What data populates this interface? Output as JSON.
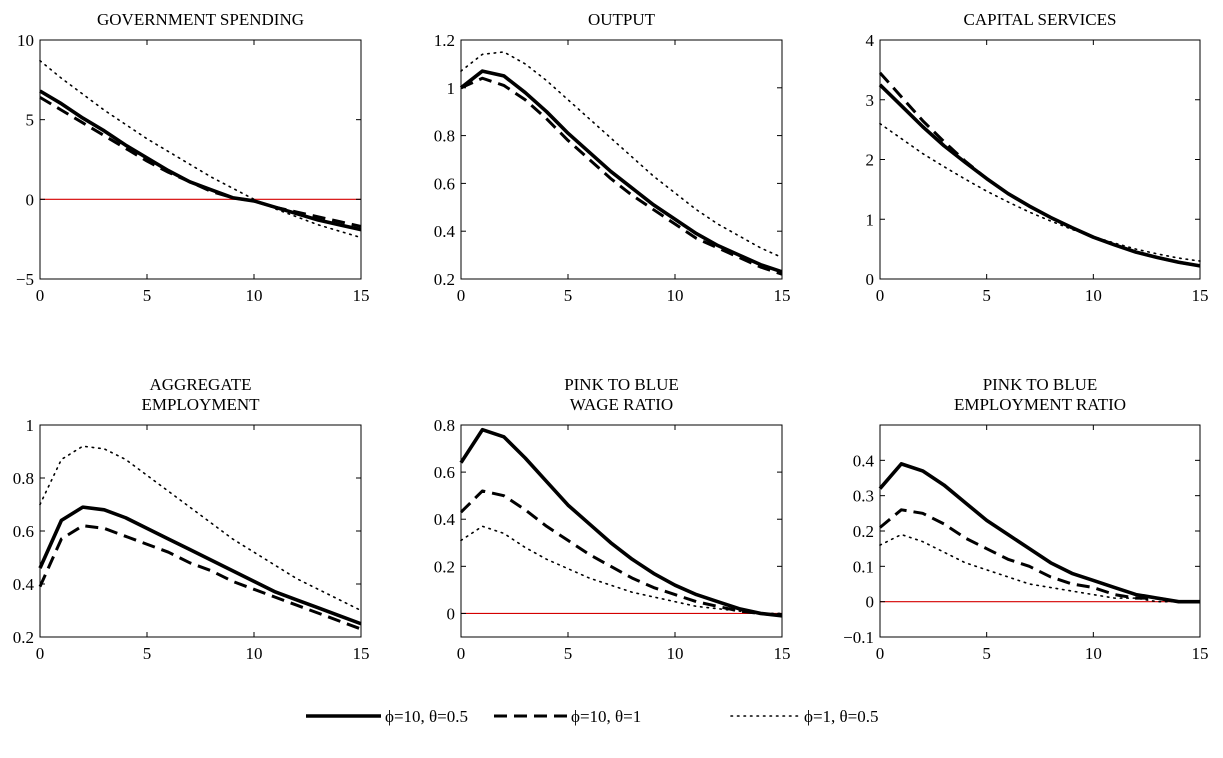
{
  "chart_data": [
    {
      "type": "line",
      "title": [
        "GOVERNMENT SPENDING"
      ],
      "xlim": [
        0,
        15
      ],
      "ylim": [
        -5,
        10
      ],
      "xticks": [
        0,
        5,
        10,
        15
      ],
      "yticks": [
        -5,
        0,
        5,
        10
      ],
      "zero_line": true,
      "grid": false,
      "x": [
        0,
        1,
        2,
        3,
        4,
        5,
        6,
        7,
        8,
        9,
        10,
        11,
        12,
        13,
        14,
        15
      ],
      "series": [
        {
          "style": "solid",
          "values": [
            6.8,
            6.0,
            5.1,
            4.3,
            3.4,
            2.6,
            1.8,
            1.1,
            0.6,
            0.1,
            -0.1,
            -0.5,
            -0.9,
            -1.3,
            -1.6,
            -1.9
          ]
        },
        {
          "style": "dashed",
          "values": [
            6.4,
            5.6,
            4.8,
            4.0,
            3.2,
            2.4,
            1.7,
            1.1,
            0.5,
            0.1,
            -0.1,
            -0.5,
            -0.8,
            -1.1,
            -1.4,
            -1.7
          ]
        },
        {
          "style": "dotted",
          "values": [
            8.7,
            7.6,
            6.6,
            5.6,
            4.7,
            3.8,
            3.0,
            2.2,
            1.4,
            0.7,
            0.0,
            -0.6,
            -1.1,
            -1.6,
            -2.0,
            -2.4
          ]
        }
      ]
    },
    {
      "type": "line",
      "title": [
        "OUTPUT"
      ],
      "xlim": [
        0,
        15
      ],
      "ylim": [
        0.2,
        1.2
      ],
      "xticks": [
        0,
        5,
        10,
        15
      ],
      "yticks": [
        0.2,
        0.4,
        0.6,
        0.8,
        1.0,
        1.2
      ],
      "zero_line": false,
      "grid": false,
      "x": [
        0,
        1,
        2,
        3,
        4,
        5,
        6,
        7,
        8,
        9,
        10,
        11,
        12,
        13,
        14,
        15
      ],
      "series": [
        {
          "style": "solid",
          "values": [
            1.0,
            1.07,
            1.05,
            0.98,
            0.9,
            0.81,
            0.73,
            0.65,
            0.58,
            0.51,
            0.45,
            0.39,
            0.34,
            0.3,
            0.26,
            0.23
          ]
        },
        {
          "style": "dashed",
          "values": [
            1.0,
            1.04,
            1.01,
            0.95,
            0.87,
            0.78,
            0.7,
            0.62,
            0.55,
            0.49,
            0.43,
            0.37,
            0.33,
            0.29,
            0.25,
            0.22
          ]
        },
        {
          "style": "dotted",
          "values": [
            1.07,
            1.14,
            1.15,
            1.1,
            1.03,
            0.95,
            0.87,
            0.79,
            0.71,
            0.63,
            0.56,
            0.49,
            0.43,
            0.38,
            0.33,
            0.29
          ]
        }
      ]
    },
    {
      "type": "line",
      "title": [
        "CAPITAL SERVICES"
      ],
      "xlim": [
        0,
        15
      ],
      "ylim": [
        0,
        4
      ],
      "xticks": [
        0,
        5,
        10,
        15
      ],
      "yticks": [
        0,
        1,
        2,
        3,
        4
      ],
      "zero_line": false,
      "grid": false,
      "x": [
        0,
        1,
        2,
        3,
        4,
        5,
        6,
        7,
        8,
        9,
        10,
        11,
        12,
        13,
        14,
        15
      ],
      "series": [
        {
          "style": "solid",
          "values": [
            3.25,
            2.9,
            2.55,
            2.23,
            1.95,
            1.68,
            1.43,
            1.22,
            1.03,
            0.86,
            0.7,
            0.57,
            0.45,
            0.36,
            0.28,
            0.22
          ]
        },
        {
          "style": "dashed",
          "values": [
            3.45,
            3.05,
            2.65,
            2.3,
            1.97,
            1.68,
            1.43,
            1.22,
            1.03,
            0.86,
            0.7,
            0.57,
            0.45,
            0.36,
            0.28,
            0.22
          ]
        },
        {
          "style": "dotted",
          "values": [
            2.6,
            2.35,
            2.1,
            1.88,
            1.67,
            1.47,
            1.29,
            1.12,
            0.97,
            0.83,
            0.71,
            0.6,
            0.5,
            0.42,
            0.35,
            0.3
          ]
        }
      ]
    },
    {
      "type": "line",
      "title": [
        "AGGREGATE",
        "EMPLOYMENT"
      ],
      "xlim": [
        0,
        15
      ],
      "ylim": [
        0.2,
        1.0
      ],
      "xticks": [
        0,
        5,
        10,
        15
      ],
      "yticks": [
        0.2,
        0.4,
        0.6,
        0.8,
        1.0
      ],
      "zero_line": false,
      "grid": false,
      "x": [
        0,
        1,
        2,
        3,
        4,
        5,
        6,
        7,
        8,
        9,
        10,
        11,
        12,
        13,
        14,
        15
      ],
      "series": [
        {
          "style": "solid",
          "values": [
            0.46,
            0.64,
            0.69,
            0.68,
            0.65,
            0.61,
            0.57,
            0.53,
            0.49,
            0.45,
            0.41,
            0.37,
            0.34,
            0.31,
            0.28,
            0.25
          ]
        },
        {
          "style": "dashed",
          "values": [
            0.39,
            0.57,
            0.62,
            0.61,
            0.58,
            0.55,
            0.52,
            0.48,
            0.45,
            0.41,
            0.38,
            0.35,
            0.32,
            0.29,
            0.26,
            0.23
          ]
        },
        {
          "style": "dotted",
          "values": [
            0.7,
            0.87,
            0.92,
            0.91,
            0.87,
            0.81,
            0.75,
            0.69,
            0.63,
            0.57,
            0.52,
            0.47,
            0.42,
            0.38,
            0.34,
            0.3
          ]
        }
      ]
    },
    {
      "type": "line",
      "title": [
        "PINK TO BLUE",
        "WAGE RATIO"
      ],
      "xlim": [
        0,
        15
      ],
      "ylim": [
        -0.1,
        0.8
      ],
      "xticks": [
        0,
        5,
        10,
        15
      ],
      "yticks": [
        0,
        0.2,
        0.4,
        0.6,
        0.8
      ],
      "zero_line": true,
      "grid": false,
      "x": [
        0,
        1,
        2,
        3,
        4,
        5,
        6,
        7,
        8,
        9,
        10,
        11,
        12,
        13,
        14,
        15
      ],
      "series": [
        {
          "style": "solid",
          "values": [
            0.64,
            0.78,
            0.75,
            0.66,
            0.56,
            0.46,
            0.38,
            0.3,
            0.23,
            0.17,
            0.12,
            0.08,
            0.05,
            0.02,
            0.0,
            -0.01
          ]
        },
        {
          "style": "dashed",
          "values": [
            0.43,
            0.52,
            0.5,
            0.44,
            0.37,
            0.31,
            0.25,
            0.2,
            0.15,
            0.11,
            0.08,
            0.05,
            0.03,
            0.01,
            0.0,
            -0.01
          ]
        },
        {
          "style": "dotted",
          "values": [
            0.31,
            0.37,
            0.34,
            0.28,
            0.23,
            0.19,
            0.15,
            0.12,
            0.09,
            0.07,
            0.05,
            0.03,
            0.02,
            0.01,
            0.0,
            0.0
          ]
        }
      ]
    },
    {
      "type": "line",
      "title": [
        "PINK TO BLUE",
        "EMPLOYMENT RATIO"
      ],
      "xlim": [
        0,
        15
      ],
      "ylim": [
        -0.1,
        0.5
      ],
      "xticks": [
        0,
        5,
        10,
        15
      ],
      "yticks": [
        -0.1,
        0,
        0.1,
        0.2,
        0.3,
        0.4
      ],
      "zero_line": true,
      "grid": false,
      "x": [
        0,
        1,
        2,
        3,
        4,
        5,
        6,
        7,
        8,
        9,
        10,
        11,
        12,
        13,
        14,
        15
      ],
      "series": [
        {
          "style": "solid",
          "values": [
            0.32,
            0.39,
            0.37,
            0.33,
            0.28,
            0.23,
            0.19,
            0.15,
            0.11,
            0.08,
            0.06,
            0.04,
            0.02,
            0.01,
            0.0,
            0.0
          ]
        },
        {
          "style": "dashed",
          "values": [
            0.21,
            0.26,
            0.25,
            0.22,
            0.18,
            0.15,
            0.12,
            0.1,
            0.07,
            0.05,
            0.04,
            0.02,
            0.01,
            0.01,
            0.0,
            0.0
          ]
        },
        {
          "style": "dotted",
          "values": [
            0.16,
            0.19,
            0.17,
            0.14,
            0.11,
            0.09,
            0.07,
            0.05,
            0.04,
            0.03,
            0.02,
            0.01,
            0.01,
            0.0,
            0.0,
            0.0
          ]
        }
      ]
    }
  ],
  "legend": {
    "placement": "bottom-center",
    "entries": [
      {
        "label": "ϕ=10, θ=0.5",
        "style": "solid"
      },
      {
        "label": "ϕ=10, θ=1",
        "style": "dashed"
      },
      {
        "label": "ϕ=1, θ=0.5",
        "style": "dotted"
      }
    ]
  },
  "colors": {
    "lines": "#000000",
    "zero_line": "#d40000",
    "axes": "#000000"
  }
}
